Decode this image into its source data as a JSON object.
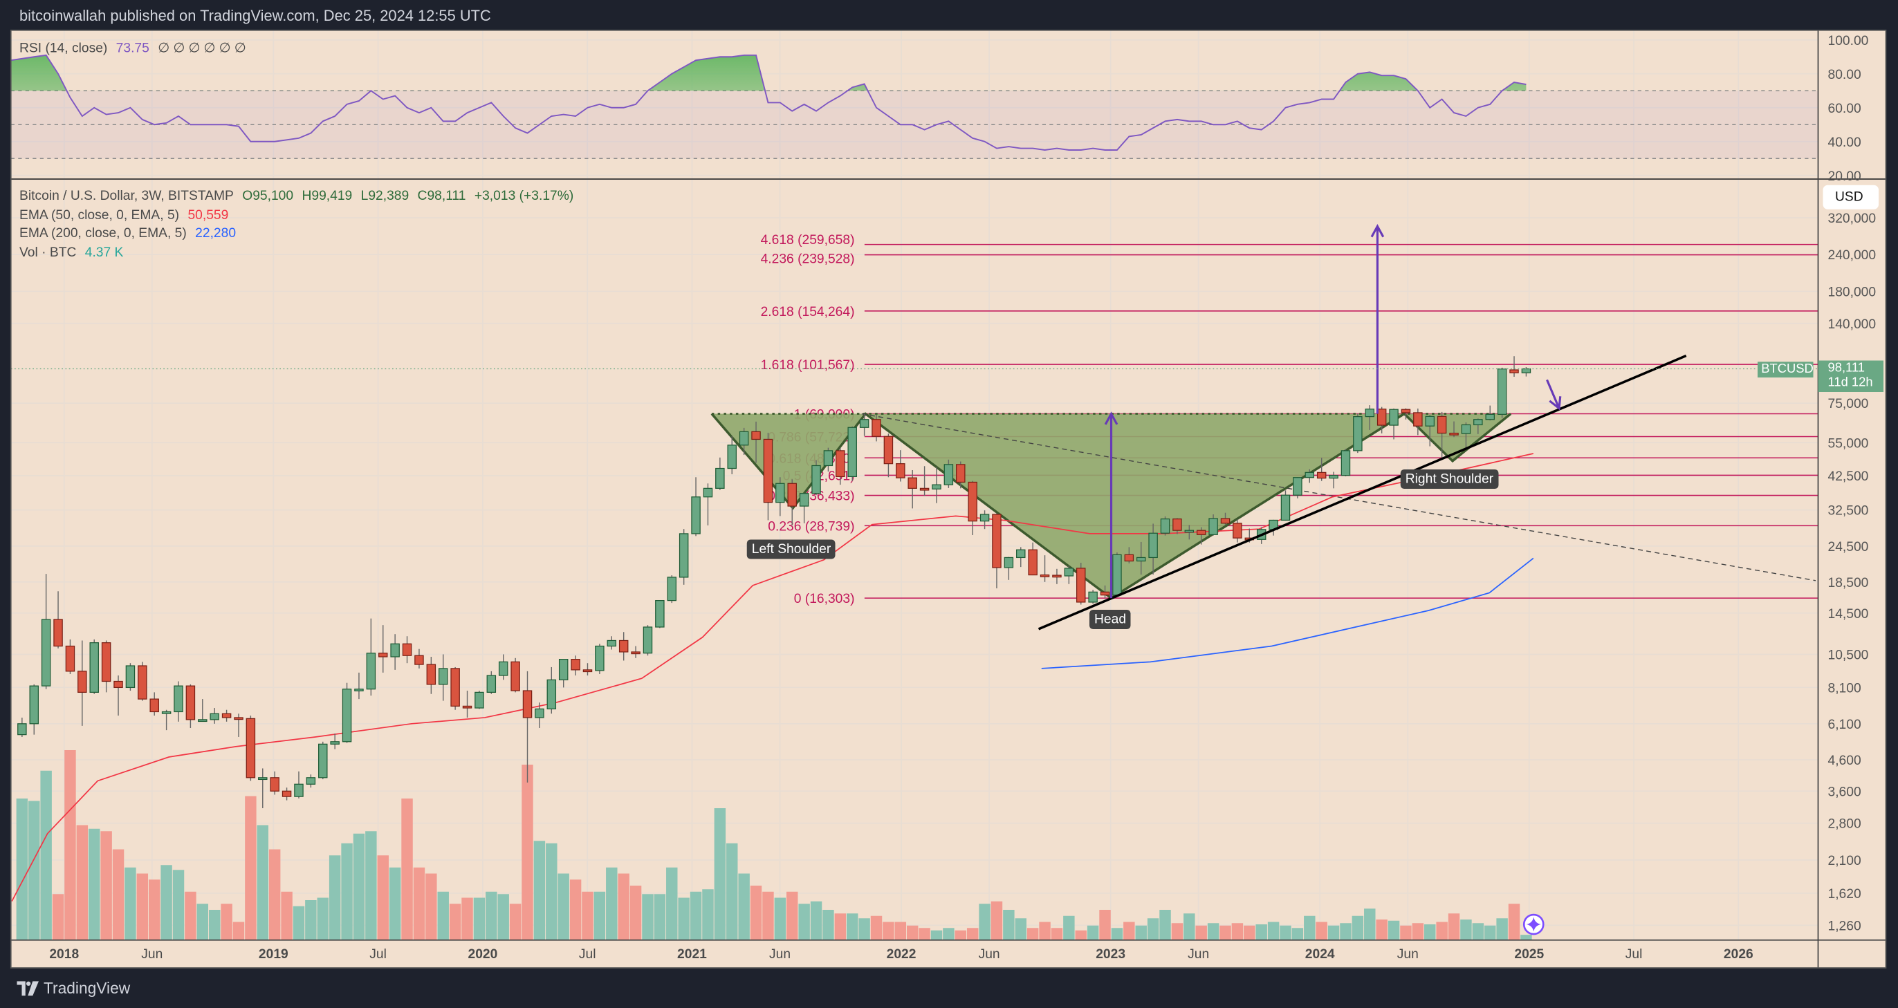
{
  "header": {
    "published": "bitcoinwallah published on TradingView.com, Dec 25, 2024 12:55 UTC"
  },
  "rsi_legend": {
    "name": "RSI (14, close)",
    "value": "73.75",
    "extras": "∅ ∅ ∅ ∅ ∅ ∅",
    "color": "#7e57c2"
  },
  "legend": {
    "symbol": "Bitcoin / U.S. Dollar, 3W, BITSTAMP",
    "open": "O95,100",
    "high": "H99,419",
    "low": "L92,389",
    "close": "C98,111",
    "change": "+3,013 (+3.17%)",
    "ema50_label": "EMA (50, close, 0, EMA, 5)",
    "ema50_value": "50,559",
    "ema50_color": "#f23645",
    "ema200_label": "EMA (200, close, 0, EMA, 5)",
    "ema200_value": "22,280",
    "ema200_color": "#2962ff",
    "vol_label": "Vol · BTC",
    "vol_value": "4.37 K",
    "vol_color": "#26a69a"
  },
  "currency": "USD",
  "price_tag": {
    "symbol": "BTCUSD",
    "price": "98,111",
    "countdown": "11d 12h"
  },
  "annotations": {
    "left_shoulder": "Left Shoulder",
    "head": "Head",
    "right_shoulder": "Right Shoulder"
  },
  "footer": {
    "brand": "TradingView"
  },
  "colors": {
    "background": "#f2e0cf",
    "up": "#6aa884",
    "down": "#d9543f",
    "fib": "#c2185b",
    "pattern_fill": "#8fa86c",
    "arrow": "#673ab7"
  },
  "chart_data": {
    "type": "candlestick",
    "interval": "3W",
    "scale": "log",
    "price_ticks": [
      320000,
      240000,
      180000,
      140000,
      75000,
      55000,
      42500,
      32500,
      24500,
      18500,
      14500,
      10500,
      8100,
      6100,
      4600,
      3600,
      2800,
      2100,
      1620,
      1260
    ],
    "price_tick_labels": [
      "320,000",
      "240,000",
      "180,000",
      "140,000",
      "75,000",
      "55,000",
      "42,500",
      "32,500",
      "24,500",
      "18,500",
      "14,500",
      "10,500",
      "8,100",
      "6,100",
      "4,600",
      "3,600",
      "2,800",
      "2,100",
      "1,620",
      "1,260"
    ],
    "rsi_ticks": [
      "100.00",
      "80.00",
      "60.00",
      "40.00",
      "20.00"
    ],
    "rsi_tick_values": [
      100,
      80,
      60,
      40,
      20
    ],
    "rsi_bands": [
      70,
      30
    ],
    "time_ticks": [
      {
        "label": "2018",
        "t": 2018.0,
        "year": true
      },
      {
        "label": "Jun",
        "t": 2018.42,
        "year": false
      },
      {
        "label": "2019",
        "t": 2019.0,
        "year": true
      },
      {
        "label": "Jul",
        "t": 2019.5,
        "year": false
      },
      {
        "label": "2020",
        "t": 2020.0,
        "year": true
      },
      {
        "label": "Jul",
        "t": 2020.5,
        "year": false
      },
      {
        "label": "2021",
        "t": 2021.0,
        "year": true
      },
      {
        "label": "Jun",
        "t": 2021.42,
        "year": false
      },
      {
        "label": "2022",
        "t": 2022.0,
        "year": true
      },
      {
        "label": "Jun",
        "t": 2022.42,
        "year": false
      },
      {
        "label": "2023",
        "t": 2023.0,
        "year": true
      },
      {
        "label": "Jun",
        "t": 2023.42,
        "year": false
      },
      {
        "label": "2024",
        "t": 2024.0,
        "year": true
      },
      {
        "label": "Jun",
        "t": 2024.42,
        "year": false
      },
      {
        "label": "2025",
        "t": 2025.0,
        "year": true
      },
      {
        "label": "Jul",
        "t": 2025.5,
        "year": false
      },
      {
        "label": "2026",
        "t": 2026.0,
        "year": true
      }
    ],
    "candles_ohlc": [
      [
        5600,
        6400,
        5500,
        6100
      ],
      [
        6100,
        8300,
        5600,
        8200
      ],
      [
        8200,
        19700,
        8000,
        13800
      ],
      [
        13800,
        17200,
        11000,
        11200
      ],
      [
        11200,
        11800,
        9000,
        9200
      ],
      [
        9200,
        11700,
        6000,
        7800
      ],
      [
        7800,
        11800,
        7700,
        11500
      ],
      [
        11500,
        11700,
        7800,
        8500
      ],
      [
        8500,
        8900,
        6500,
        8100
      ],
      [
        8100,
        9800,
        7900,
        9600
      ],
      [
        9600,
        9900,
        7300,
        7400
      ],
      [
        7400,
        7800,
        6500,
        6700
      ],
      [
        6700,
        6800,
        5800,
        6700
      ],
      [
        6700,
        8500,
        6200,
        8200
      ],
      [
        8200,
        8300,
        5900,
        6300
      ],
      [
        6300,
        7400,
        6200,
        6300
      ],
      [
        6300,
        6900,
        6100,
        6600
      ],
      [
        6600,
        6800,
        6200,
        6400
      ],
      [
        6400,
        6600,
        5500,
        6350
      ],
      [
        6350,
        6500,
        3900,
        4000
      ],
      [
        4000,
        4300,
        3150,
        4000
      ],
      [
        4000,
        4200,
        3500,
        3600
      ],
      [
        3600,
        3700,
        3350,
        3450
      ],
      [
        3450,
        4200,
        3400,
        3800
      ],
      [
        3800,
        4100,
        3700,
        4000
      ],
      [
        4000,
        5300,
        3950,
        5200
      ],
      [
        5200,
        5650,
        5000,
        5300
      ],
      [
        5300,
        8400,
        5250,
        8000
      ],
      [
        8000,
        9100,
        7400,
        8000
      ],
      [
        8000,
        13900,
        7600,
        10600
      ],
      [
        10600,
        13200,
        9100,
        10300
      ],
      [
        10300,
        12300,
        9300,
        11400
      ],
      [
        11400,
        12100,
        9800,
        10400
      ],
      [
        10400,
        10950,
        9400,
        9700
      ],
      [
        9700,
        10300,
        7700,
        8300
      ],
      [
        8300,
        10500,
        7300,
        9400
      ],
      [
        9400,
        9500,
        6800,
        7000
      ],
      [
        7000,
        7900,
        6400,
        6900
      ],
      [
        6900,
        7900,
        6850,
        7800
      ],
      [
        7800,
        9200,
        7700,
        8900
      ],
      [
        8900,
        10500,
        8600,
        9900
      ],
      [
        9900,
        10200,
        7800,
        7900
      ],
      [
        7900,
        9200,
        3850,
        6400
      ],
      [
        6400,
        7200,
        5900,
        6850
      ],
      [
        6850,
        9500,
        6600,
        8600
      ],
      [
        8600,
        10100,
        8100,
        10100
      ],
      [
        10100,
        10400,
        8900,
        9300
      ],
      [
        9300,
        9800,
        8900,
        9250
      ],
      [
        9250,
        11400,
        9000,
        11200
      ],
      [
        11200,
        12100,
        10900,
        11700
      ],
      [
        11700,
        12500,
        10000,
        10700
      ],
      [
        10700,
        11200,
        10200,
        10600
      ],
      [
        10600,
        13200,
        10400,
        13000
      ],
      [
        13000,
        16000,
        12900,
        16000
      ],
      [
        16000,
        19500,
        15700,
        19200
      ],
      [
        19200,
        28000,
        18100,
        27000
      ],
      [
        27000,
        42000,
        26500,
        36000
      ],
      [
        36000,
        40000,
        28800,
        38500
      ],
      [
        38500,
        49000,
        38000,
        45000
      ],
      [
        45000,
        58000,
        43000,
        54000
      ],
      [
        54000,
        61800,
        50000,
        60000
      ],
      [
        60000,
        64900,
        47000,
        56500
      ],
      [
        56500,
        59500,
        30000,
        34500
      ],
      [
        34500,
        42000,
        31000,
        40000
      ],
      [
        40000,
        41300,
        28800,
        33500
      ],
      [
        33500,
        36500,
        29300,
        37000
      ],
      [
        37000,
        48000,
        36500,
        46000
      ],
      [
        46000,
        52900,
        43900,
        51700
      ],
      [
        51700,
        52900,
        39600,
        42200
      ],
      [
        42200,
        62500,
        40800,
        62000
      ],
      [
        62000,
        69000,
        58000,
        66000
      ],
      [
        66000,
        68500,
        55600,
        57800
      ],
      [
        57800,
        59100,
        42000,
        46700
      ],
      [
        46700,
        51900,
        40600,
        41800
      ],
      [
        41800,
        44400,
        32900,
        38500
      ],
      [
        38500,
        45800,
        36300,
        38300
      ],
      [
        38300,
        45500,
        34300,
        39600
      ],
      [
        39600,
        48200,
        38600,
        46400
      ],
      [
        46400,
        47500,
        38500,
        40400
      ],
      [
        40400,
        40800,
        26700,
        29800
      ],
      [
        29800,
        32400,
        28000,
        31400
      ],
      [
        31400,
        31700,
        17600,
        20700
      ],
      [
        20700,
        22500,
        18800,
        22400
      ],
      [
        22400,
        24300,
        20800,
        23800
      ],
      [
        23800,
        25200,
        19500,
        19550
      ],
      [
        19550,
        22800,
        18500,
        19500
      ],
      [
        19500,
        20500,
        18200,
        19400
      ],
      [
        19400,
        21000,
        18200,
        20600
      ],
      [
        20600,
        21500,
        15500,
        15800
      ],
      [
        15800,
        17400,
        15600,
        17100
      ],
      [
        17100,
        18000,
        16300,
        16700
      ],
      [
        16700,
        23300,
        16500,
        22900
      ],
      [
        22900,
        24300,
        21400,
        21800
      ],
      [
        21800,
        25300,
        19600,
        22400
      ],
      [
        22400,
        29200,
        19600,
        27100
      ],
      [
        27100,
        30900,
        26600,
        30300
      ],
      [
        30300,
        30500,
        26900,
        27700
      ],
      [
        27700,
        28900,
        25800,
        27700
      ],
      [
        27700,
        28400,
        24800,
        26800
      ],
      [
        26800,
        31400,
        26600,
        30400
      ],
      [
        30400,
        31800,
        28900,
        29300
      ],
      [
        29300,
        30200,
        25200,
        26100
      ],
      [
        26100,
        28100,
        25200,
        25800
      ],
      [
        25800,
        28400,
        24900,
        27900
      ],
      [
        27900,
        30100,
        26600,
        30000
      ],
      [
        30000,
        37900,
        29900,
        36500
      ],
      [
        36500,
        42000,
        35600,
        41900
      ],
      [
        41900,
        44700,
        40200,
        43600
      ],
      [
        43600,
        48900,
        40800,
        41700
      ],
      [
        41700,
        43800,
        38500,
        42600
      ],
      [
        42600,
        52400,
        42300,
        51700
      ],
      [
        51700,
        69000,
        50800,
        67500
      ],
      [
        67500,
        73800,
        60800,
        71600
      ],
      [
        71600,
        72800,
        59200,
        63100
      ],
      [
        63100,
        71900,
        56500,
        71400
      ],
      [
        71400,
        72000,
        66000,
        69600
      ],
      [
        69600,
        71900,
        58400,
        62700
      ],
      [
        62700,
        68400,
        53500,
        67600
      ],
      [
        67600,
        70000,
        49000,
        59300
      ],
      [
        59300,
        65000,
        57500,
        59100
      ],
      [
        59100,
        64500,
        52500,
        63300
      ],
      [
        63300,
        66500,
        58900,
        66000
      ],
      [
        66000,
        73600,
        65500,
        68700
      ],
      [
        68700,
        99000,
        66800,
        98000
      ],
      [
        97300,
        108300,
        92200,
        95100
      ],
      [
        95100,
        99419,
        92389,
        98111
      ]
    ],
    "volume_k": [
      117,
      115,
      140,
      38,
      157,
      95,
      92,
      90,
      75,
      60,
      55,
      50,
      62,
      58,
      40,
      30,
      25,
      30,
      15,
      119,
      95,
      75,
      40,
      28,
      33,
      35,
      70,
      80,
      88,
      90,
      70,
      60,
      117,
      60,
      55,
      40,
      30,
      35,
      35,
      40,
      38,
      30,
      145,
      82,
      80,
      55,
      50,
      40,
      40,
      60,
      55,
      45,
      38,
      38,
      60,
      35,
      40,
      42,
      109,
      80,
      55,
      45,
      40,
      35,
      40,
      30,
      32,
      25,
      22,
      22,
      18,
      20,
      15,
      15,
      12,
      10,
      8,
      10,
      8,
      10,
      30,
      32,
      25,
      18,
      10,
      15,
      10,
      20,
      8,
      12,
      25,
      10,
      15,
      12,
      18,
      25,
      14,
      22,
      12,
      14,
      12,
      14,
      12,
      13,
      15,
      12,
      10,
      20,
      15,
      12,
      14,
      20,
      26,
      17,
      16,
      12,
      14,
      13,
      15,
      22,
      17,
      14,
      12,
      18,
      30,
      4.37
    ],
    "rsi": [
      88,
      90,
      91,
      80,
      66,
      55,
      60,
      56,
      57,
      60,
      53,
      50,
      51,
      55,
      50,
      50,
      50,
      50,
      49,
      40,
      40,
      40,
      41,
      42,
      45,
      52,
      55,
      62,
      64,
      70,
      65,
      67,
      60,
      57,
      60,
      52,
      52,
      57,
      60,
      63,
      55,
      48,
      45,
      50,
      55,
      56,
      55,
      60,
      62,
      60,
      60,
      62,
      70,
      75,
      80,
      84,
      88,
      89,
      90,
      90,
      91,
      91,
      63,
      63,
      58,
      62,
      58,
      63,
      67,
      72,
      74,
      60,
      55,
      50,
      50,
      47,
      50,
      52,
      47,
      42,
      40,
      36,
      37,
      36,
      36,
      35,
      36,
      35,
      35,
      36,
      35,
      35,
      43,
      44,
      48,
      52,
      53,
      52,
      52,
      50,
      50,
      52,
      48,
      47,
      52,
      60,
      62,
      63,
      65,
      65,
      75,
      80,
      81,
      79,
      79,
      77,
      70,
      60,
      65,
      57,
      55,
      60,
      62,
      70,
      75,
      73.75
    ],
    "ema50": [
      [
        2017.75,
        1520
      ],
      [
        2017.92,
        2580
      ],
      [
        2018.16,
        3900
      ],
      [
        2018.5,
        4700
      ],
      [
        2018.82,
        5100
      ],
      [
        2019.2,
        5500
      ],
      [
        2019.66,
        6100
      ],
      [
        2020.01,
        6400
      ],
      [
        2020.35,
        7200
      ],
      [
        2020.76,
        8700
      ],
      [
        2021.05,
        12000
      ],
      [
        2021.29,
        18000
      ],
      [
        2021.63,
        22000
      ],
      [
        2021.86,
        29000
      ],
      [
        2022.26,
        31000
      ],
      [
        2022.49,
        30000
      ],
      [
        2022.9,
        27000
      ],
      [
        2023.25,
        27000
      ],
      [
        2023.71,
        28000
      ],
      [
        2024.06,
        36000
      ],
      [
        2024.64,
        44000
      ],
      [
        2025.02,
        50559
      ]
    ],
    "ema200": [
      [
        2022.67,
        9400
      ],
      [
        2023.19,
        9900
      ],
      [
        2023.77,
        11200
      ],
      [
        2024.17,
        13000
      ],
      [
        2024.52,
        14800
      ],
      [
        2024.81,
        17000
      ],
      [
        2025.02,
        22280
      ]
    ],
    "fib_levels": [
      {
        "ratio": "0",
        "price": 16303,
        "label": "0 (16,303)"
      },
      {
        "ratio": "0.236",
        "price": 28739,
        "label": "0.236 (28,739)"
      },
      {
        "ratio": "0.382",
        "price": 36433,
        "label": "0.382 (36,433)"
      },
      {
        "ratio": "0.5",
        "price": 42651,
        "label": "0.5 (42,651)"
      },
      {
        "ratio": "0.618",
        "price": 48870,
        "label": "0.618 (48,870)"
      },
      {
        "ratio": "0.786",
        "price": 57723,
        "label": "0.786 (57,723)"
      },
      {
        "ratio": "1",
        "price": 69000,
        "label": "1 (69,000)"
      },
      {
        "ratio": "1.618",
        "price": 101567,
        "label": "1.618 (101,567)"
      },
      {
        "ratio": "2.618",
        "price": 154264,
        "label": "2.618 (154,264)"
      },
      {
        "ratio": "4.236",
        "price": 239528,
        "label": "4.236 (239,528)"
      },
      {
        "ratio": "4.618",
        "price": 259658,
        "label": "4.618 (259,658)"
      }
    ],
    "fib_start": 2021.83,
    "pattern": [
      [
        2021.094,
        69000
      ],
      [
        2021.482,
        33000
      ],
      [
        2021.829,
        69000
      ],
      [
        2023.003,
        16303
      ],
      [
        2024.403,
        69000
      ],
      [
        2024.634,
        47700
      ],
      [
        2024.912,
        69000
      ]
    ],
    "neckline_price": 69000,
    "trendline": [
      [
        2022.656,
        12800
      ],
      [
        2025.75,
        108700
      ]
    ],
    "dashed_line": [
      [
        2021.811,
        69000
      ],
      [
        2026.369,
        18700
      ]
    ],
    "arrows": [
      [
        [
          2023.003,
          16303
        ],
        [
          2023.003,
          69000
        ]
      ],
      [
        [
          2024.275,
          69000
        ],
        [
          2024.275,
          299500
        ]
      ],
      [
        [
          2025.085,
          90000
        ],
        [
          2025.143,
          72000
        ]
      ]
    ]
  }
}
